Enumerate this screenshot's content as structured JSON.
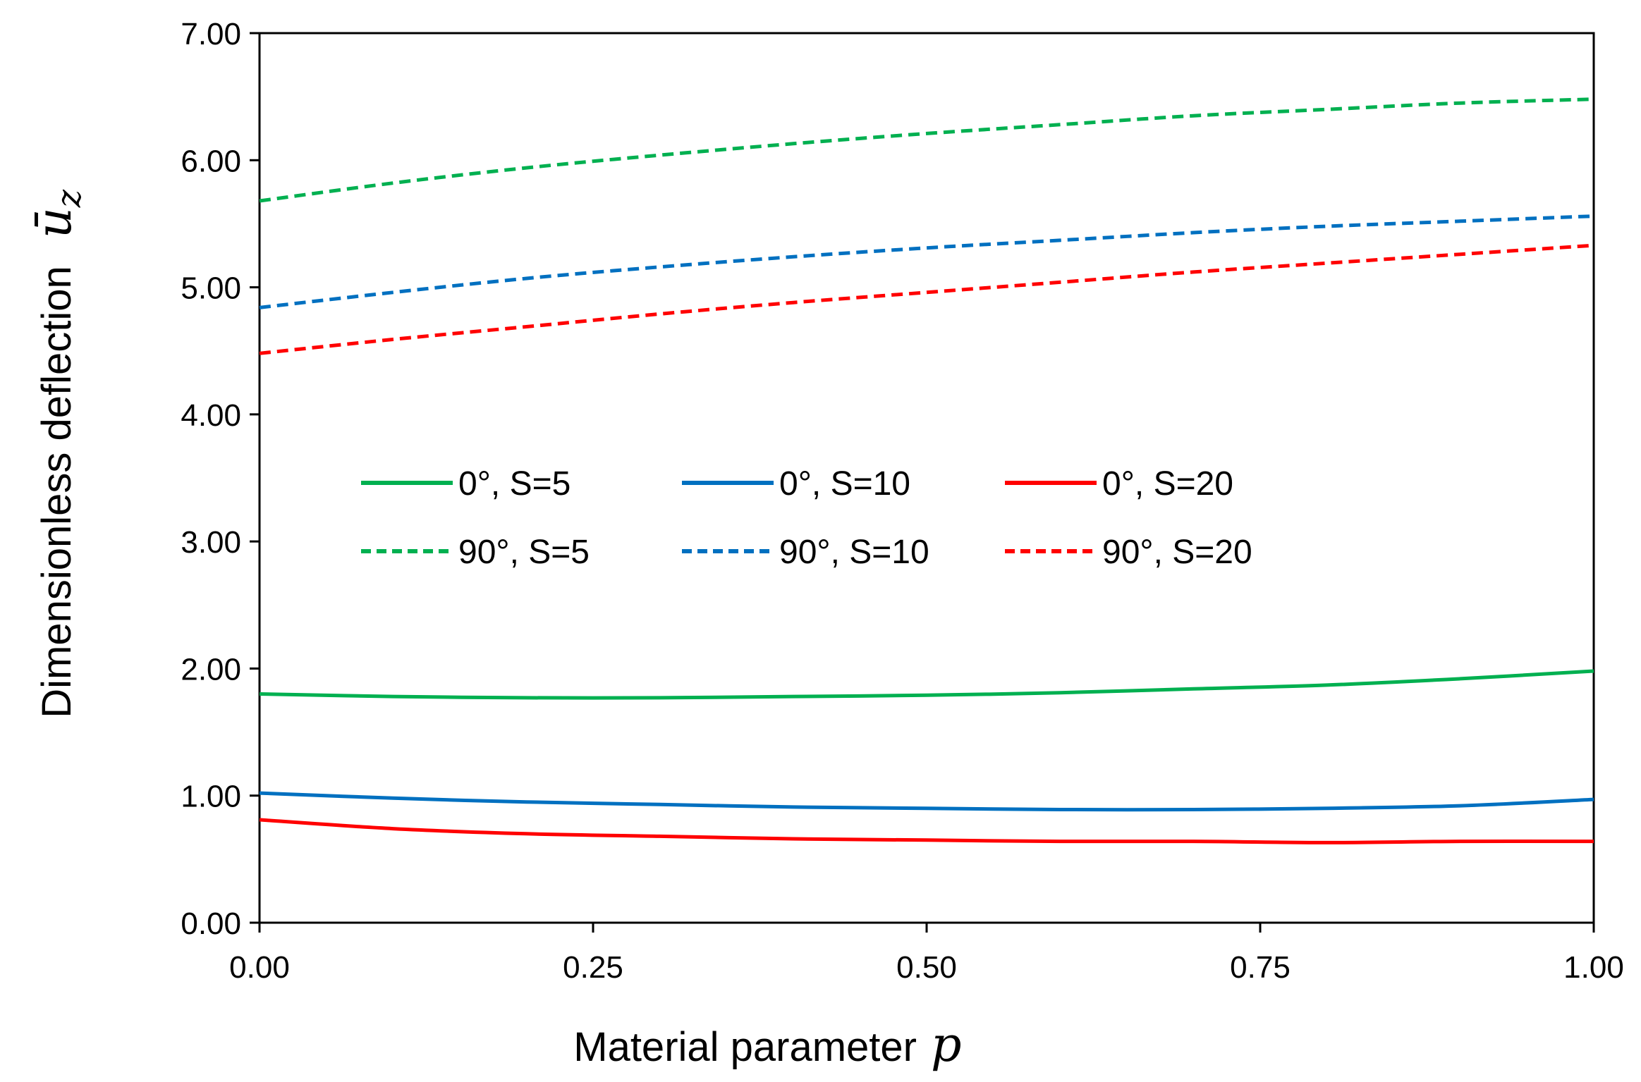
{
  "chart_data": {
    "type": "line",
    "xlabel": "Material parameter",
    "xlabel_symbol": "p",
    "ylabel": "Dimensionless deflection",
    "ylabel_symbol": "ū",
    "ylabel_symbol_sub": "z",
    "xlim": [
      0,
      1
    ],
    "ylim": [
      0,
      7
    ],
    "x_ticks": [
      "0.00",
      "0.25",
      "0.50",
      "0.75",
      "1.00"
    ],
    "y_ticks": [
      "0.00",
      "1.00",
      "2.00",
      "3.00",
      "4.00",
      "5.00",
      "6.00",
      "7.00"
    ],
    "grid": false,
    "legend_position": "center",
    "x": [
      0,
      0.1,
      0.2,
      0.3,
      0.4,
      0.5,
      0.6,
      0.7,
      0.8,
      0.9,
      1.0
    ],
    "series": [
      {
        "name": "0°, S=5",
        "color": "#00b050",
        "dash": "solid",
        "values": [
          1.8,
          1.78,
          1.77,
          1.77,
          1.78,
          1.79,
          1.81,
          1.84,
          1.87,
          1.92,
          1.98
        ]
      },
      {
        "name": "0°, S=10",
        "color": "#0070c0",
        "dash": "solid",
        "values": [
          1.02,
          0.98,
          0.95,
          0.93,
          0.91,
          0.9,
          0.89,
          0.89,
          0.9,
          0.92,
          0.97
        ]
      },
      {
        "name": "0°, S=20",
        "color": "#ff0000",
        "dash": "solid",
        "values": [
          0.81,
          0.74,
          0.7,
          0.68,
          0.66,
          0.65,
          0.64,
          0.64,
          0.63,
          0.64,
          0.64
        ]
      },
      {
        "name": "90°, S=5",
        "color": "#00b050",
        "dash": "dashed",
        "values": [
          5.68,
          5.82,
          5.94,
          6.04,
          6.13,
          6.21,
          6.28,
          6.35,
          6.4,
          6.45,
          6.48
        ]
      },
      {
        "name": "90°, S=10",
        "color": "#0070c0",
        "dash": "dashed",
        "values": [
          4.84,
          4.96,
          5.07,
          5.16,
          5.24,
          5.31,
          5.37,
          5.43,
          5.48,
          5.52,
          5.56
        ]
      },
      {
        "name": "90°, S=20",
        "color": "#ff0000",
        "dash": "dashed",
        "values": [
          4.48,
          4.59,
          4.69,
          4.79,
          4.88,
          4.96,
          5.04,
          5.12,
          5.19,
          5.26,
          5.33
        ]
      }
    ]
  }
}
